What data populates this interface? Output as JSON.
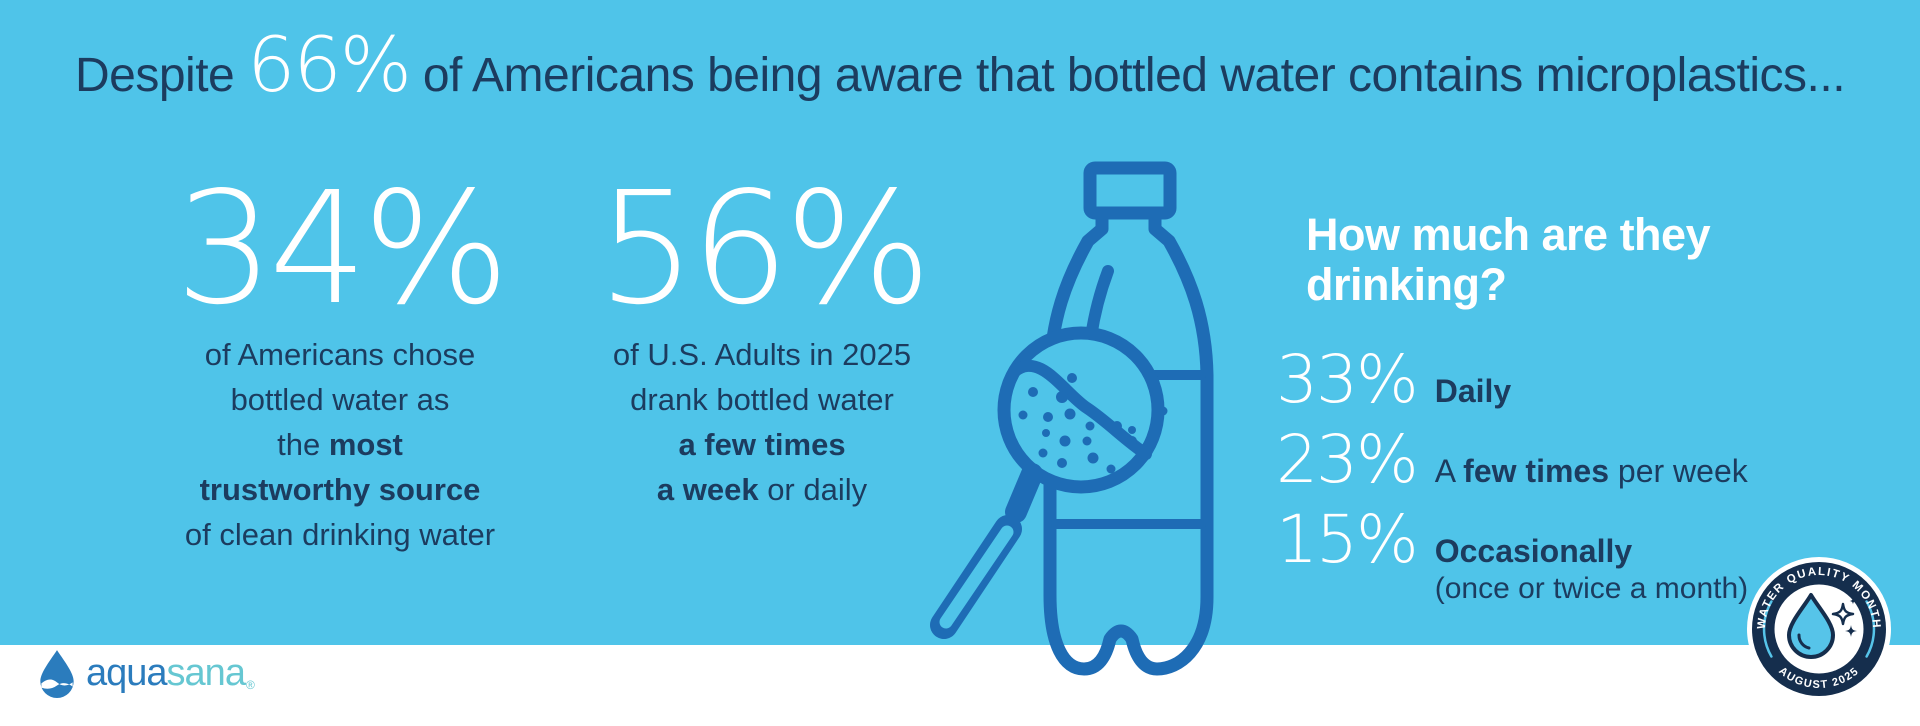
{
  "colors": {
    "background_blue": "#4fc4e9",
    "navy_text": "#1c3c5f",
    "white": "#ffffff",
    "bottle_blue": "#1e6cb5",
    "badge_navy": "#152e4d",
    "logo_blue": "#2b7cbd",
    "logo_teal": "#66c7d2"
  },
  "header": {
    "prefix": "Despite ",
    "highlight": "66%",
    "suffix": " of Americans being aware that bottled water contains microplastics..."
  },
  "stats": [
    {
      "value": "34%",
      "lines": [
        [
          {
            "t": "of Americans chose",
            "b": false
          }
        ],
        [
          {
            "t": "bottled water as",
            "b": false
          }
        ],
        [
          {
            "t": "the ",
            "b": false
          },
          {
            "t": "most",
            "b": true
          }
        ],
        [
          {
            "t": "trustworthy source",
            "b": true
          }
        ],
        [
          {
            "t": "of clean drinking water",
            "b": false
          }
        ]
      ]
    },
    {
      "value": "56%",
      "lines": [
        [
          {
            "t": "of U.S. Adults in 2025",
            "b": false
          }
        ],
        [
          {
            "t": "drank bottled water",
            "b": false
          }
        ],
        [
          {
            "t": "a few times",
            "b": true
          }
        ],
        [
          {
            "t": "a week",
            "b": true
          },
          {
            "t": " or daily",
            "b": false
          }
        ]
      ]
    }
  ],
  "drinking": {
    "title": "How much are they drinking?",
    "rows": [
      {
        "value": "33%",
        "label": [
          {
            "t": "Daily",
            "b": true
          }
        ],
        "sub": ""
      },
      {
        "value": "23%",
        "label": [
          {
            "t": "A ",
            "b": false
          },
          {
            "t": "few times",
            "b": true
          },
          {
            "t": " per week",
            "b": false
          }
        ],
        "sub": ""
      },
      {
        "value": "15%",
        "label": [
          {
            "t": "Occasionally",
            "b": true
          }
        ],
        "sub": "(once or twice a month)"
      }
    ]
  },
  "footer": {
    "logo_part1": "aqua",
    "logo_part2": "sana",
    "logo_mark": "®"
  },
  "badge": {
    "top": "WATER QUALITY MONTH",
    "bottom": "AUGUST 2025"
  },
  "chart_data": {
    "type": "table",
    "title": "Despite 66% of Americans being aware that bottled water contains microplastics...",
    "unit": "%",
    "values": [
      {
        "label": "Americans aware that bottled water contains microplastics",
        "value": 66
      },
      {
        "label": "Americans chose bottled water as the most trustworthy source of clean drinking water",
        "value": 34
      },
      {
        "label": "U.S. Adults in 2025 drank bottled water a few times a week or daily",
        "value": 56
      },
      {
        "label": "Drink bottled water daily",
        "value": 33
      },
      {
        "label": "Drink bottled water a few times per week",
        "value": 23
      },
      {
        "label": "Drink bottled water occasionally (once or twice a month)",
        "value": 15
      }
    ]
  }
}
